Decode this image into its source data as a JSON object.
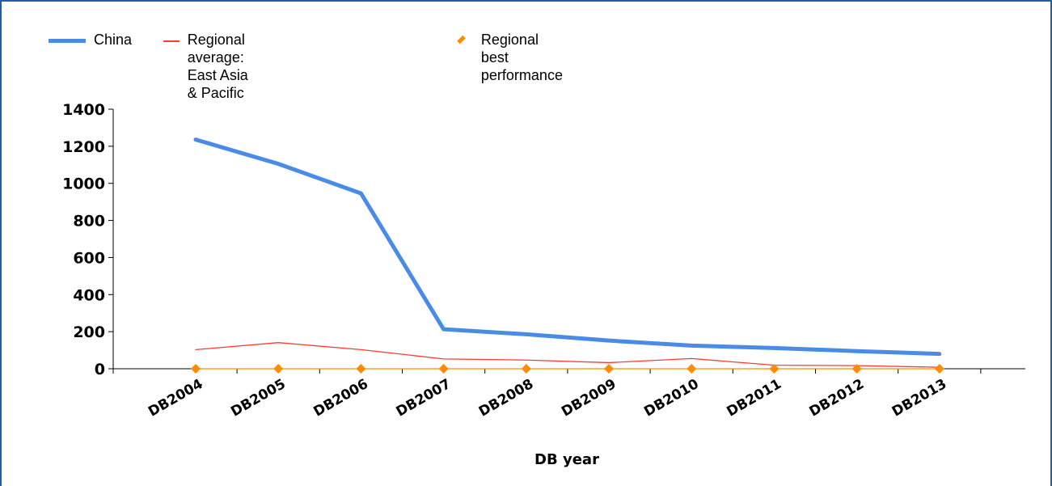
{
  "colors": {
    "frame": "#1f5fa8",
    "china": "#4a8be6",
    "regional_average": "#ff3b30",
    "regional_best": "#ff8c00"
  },
  "legend": [
    {
      "label": "China",
      "color": "#4a8be6",
      "marker": "thick-line"
    },
    {
      "label": "Regional average: East Asia\n& Pacific",
      "color": "#ff3b30",
      "marker": "thin-line"
    },
    {
      "label": "Regional best performance",
      "color": "#ff8c00",
      "marker": "diamond"
    }
  ],
  "chart_data": {
    "type": "line",
    "xlabel": "DB year",
    "ylabel": "",
    "ylim": [
      0,
      1400
    ],
    "yticks": [
      0,
      200,
      400,
      600,
      800,
      1000,
      1200,
      1400
    ],
    "categories": [
      "DB2004",
      "DB2005",
      "DB2006",
      "DB2007",
      "DB2008",
      "DB2009",
      "DB2010",
      "DB2011",
      "DB2012",
      "DB2013"
    ],
    "series": [
      {
        "name": "China",
        "values": [
          1236,
          1105,
          946,
          213,
          186,
          152,
          125,
          112,
          95,
          80
        ],
        "style": "thick-line"
      },
      {
        "name": "Regional average: East Asia & Pacific",
        "values": [
          103,
          141,
          103,
          53,
          47,
          33,
          55,
          19,
          17,
          8
        ],
        "style": "thin-line"
      },
      {
        "name": "Regional best performance",
        "values": [
          0,
          0,
          0,
          0,
          0,
          0,
          0,
          0,
          0,
          0
        ],
        "style": "diamond-markers"
      }
    ],
    "grid": false,
    "legend_position": "top-left"
  }
}
